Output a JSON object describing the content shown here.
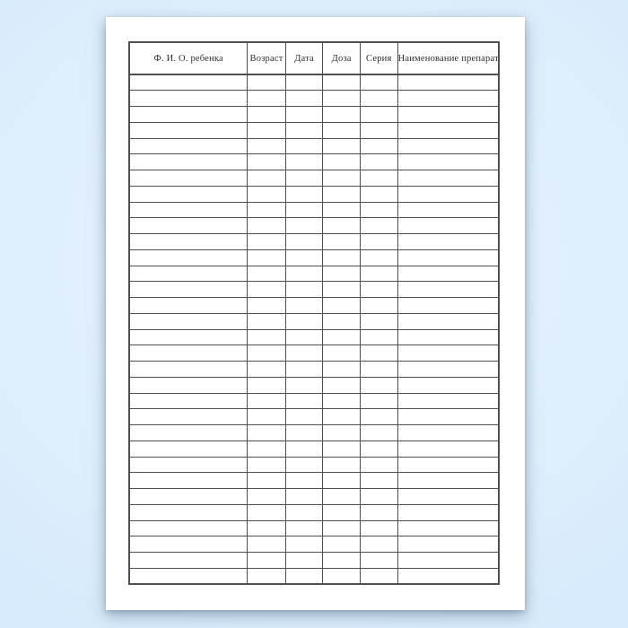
{
  "document": {
    "table": {
      "columns": [
        {
          "id": "name",
          "label": "Ф. И. О. ребенка"
        },
        {
          "id": "age",
          "label": "Возраст"
        },
        {
          "id": "date",
          "label": "Дата"
        },
        {
          "id": "dose",
          "label": "Доза"
        },
        {
          "id": "series",
          "label": "Серия"
        },
        {
          "id": "drug",
          "label": "Наименование препарата"
        }
      ],
      "empty_row_count": 32,
      "cell_value": ""
    },
    "colors": {
      "background_center": "#eaf4fe",
      "background_edge": "#c9dff4",
      "paper": "#ffffff",
      "table_border": "#4f4f4f",
      "header_text": "#2e2e2e"
    }
  }
}
